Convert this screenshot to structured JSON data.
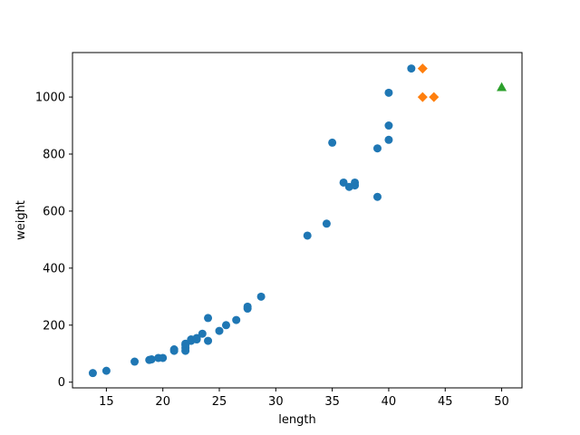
{
  "chart_data": {
    "type": "scatter",
    "xlabel": "length",
    "ylabel": "weight",
    "xlim": [
      12.0,
      51.8
    ],
    "ylim": [
      -20,
      1156
    ],
    "x_ticks": [
      15,
      20,
      25,
      30,
      35,
      40,
      45,
      50
    ],
    "y_ticks": [
      0,
      200,
      400,
      600,
      800,
      1000
    ],
    "grid": false,
    "legend": "none",
    "series": [
      {
        "marker": "circle",
        "color": "#1f77b4",
        "points": [
          [
            13.8,
            32
          ],
          [
            15.0,
            40
          ],
          [
            17.5,
            72
          ],
          [
            18.8,
            78
          ],
          [
            19.0,
            80
          ],
          [
            19.6,
            85
          ],
          [
            20.0,
            85
          ],
          [
            21.0,
            110
          ],
          [
            21.0,
            115
          ],
          [
            22.0,
            110
          ],
          [
            22.0,
            120
          ],
          [
            22.0,
            130
          ],
          [
            22.0,
            135
          ],
          [
            22.5,
            145
          ],
          [
            22.5,
            150
          ],
          [
            23.0,
            150
          ],
          [
            23.0,
            155
          ],
          [
            23.5,
            170
          ],
          [
            24.0,
            145
          ],
          [
            24.0,
            225
          ],
          [
            25.0,
            180
          ],
          [
            25.6,
            200
          ],
          [
            26.5,
            218
          ],
          [
            27.5,
            258
          ],
          [
            27.5,
            265
          ],
          [
            28.7,
            300
          ],
          [
            32.8,
            514
          ],
          [
            34.5,
            556
          ],
          [
            35.0,
            840
          ],
          [
            36.0,
            700
          ],
          [
            36.5,
            685
          ],
          [
            37.0,
            690
          ],
          [
            37.0,
            700
          ],
          [
            39.0,
            650
          ],
          [
            39.0,
            820
          ],
          [
            40.0,
            850
          ],
          [
            40.0,
            900
          ],
          [
            40.0,
            1015
          ],
          [
            42.0,
            1100
          ]
        ]
      },
      {
        "marker": "diamond",
        "color": "#ff7f0e",
        "points": [
          [
            43.0,
            1100
          ],
          [
            43.0,
            1000
          ],
          [
            44.0,
            1000
          ]
        ]
      },
      {
        "marker": "triangle",
        "color": "#2ca02c",
        "points": [
          [
            50.0,
            1035
          ]
        ]
      }
    ]
  }
}
